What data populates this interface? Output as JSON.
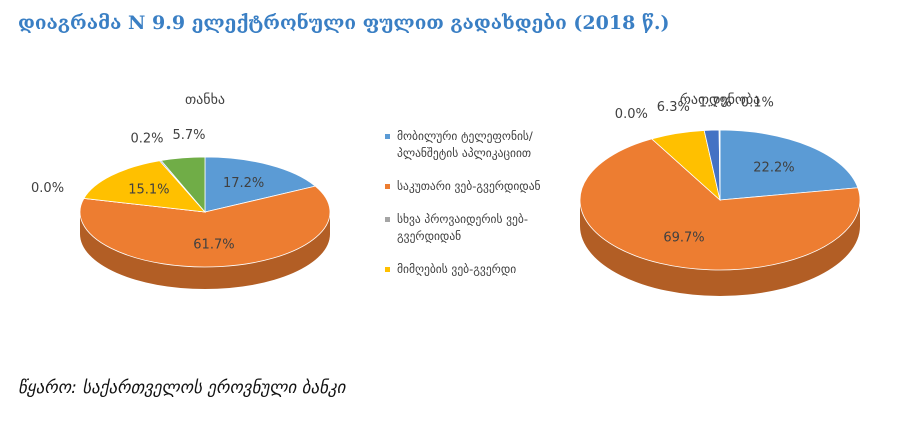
{
  "title": "დიაგრამა N 9.9 ელექტრონული ფულით გადახდები (2018 წ.)",
  "source": "წყარო: საქართველოს ეროვნული ბანკი",
  "chart_data": [
    {
      "type": "pie",
      "title": "თანხა",
      "categories": [
        "მობილური ტელეფონის/პლანშეტის აპლიკაციით",
        "საკუთარი ვებ-გვერდიდან",
        "სხვა პროვაიდერის ვებ-გვერდიდან",
        "მიმღების ვებ-გვერდი",
        null,
        null
      ],
      "colors": [
        "#5b9bd5",
        "#ed7d31",
        "#a5a5a5",
        "#ffc000",
        "#4472c4",
        "#70ad47"
      ],
      "values": [
        17.2,
        61.7,
        0.0,
        15.1,
        0.2,
        5.7
      ],
      "value_labels": [
        "17.2%",
        "61.7%",
        "0.0%",
        "15.1%",
        "0.2%",
        "5.7%"
      ]
    },
    {
      "type": "pie",
      "title": "რაოდენობა",
      "categories": [
        "მობილური ტელეფონის/პლანშეტის აპლიკაციით",
        "საკუთარი ვებ-გვერდიდან",
        "სხვა პროვაიდერის ვებ-გვერდიდან",
        "მიმღების ვებ-გვერდი",
        null,
        null
      ],
      "colors": [
        "#5b9bd5",
        "#ed7d31",
        "#a5a5a5",
        "#ffc000",
        "#4472c4",
        "#70ad47"
      ],
      "values": [
        22.2,
        69.7,
        0.0,
        6.3,
        1.7,
        0.1
      ],
      "value_labels": [
        "22.2%",
        "69.7%",
        "0.0%",
        "6.3%",
        "1.7%",
        "0.1%"
      ]
    }
  ]
}
